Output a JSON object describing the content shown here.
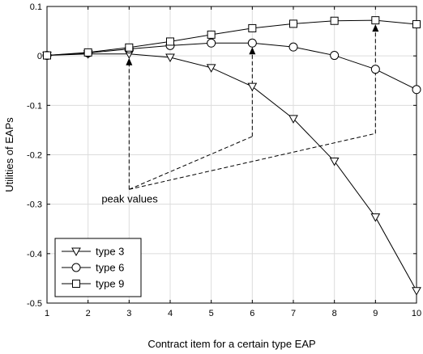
{
  "chart_data": {
    "type": "line",
    "xlabel": "Contract item for a certain type EAP",
    "ylabel": "Utilities of EAPs",
    "xlim": [
      1,
      10
    ],
    "ylim": [
      -0.5,
      0.1
    ],
    "xticks": [
      1,
      2,
      3,
      4,
      5,
      6,
      7,
      8,
      9,
      10
    ],
    "yticks": [
      0.1,
      0,
      -0.1,
      -0.2,
      -0.3,
      -0.4,
      -0.5
    ],
    "ytick_labels": [
      "0.1",
      "0",
      "-0.1",
      "-0.2",
      "-0.3",
      "-0.4",
      "-0.5"
    ],
    "grid": true,
    "legend_position": "bottom-left",
    "series": [
      {
        "name": "type 3",
        "marker": "triangle-down",
        "x": [
          1,
          2,
          3,
          4,
          5,
          6,
          7,
          8,
          9,
          10
        ],
        "values": [
          0.001,
          0.004,
          0.004,
          -0.003,
          -0.024,
          -0.062,
          -0.127,
          -0.213,
          -0.326,
          -0.475
        ]
      },
      {
        "name": "type 6",
        "marker": "circle",
        "x": [
          1,
          2,
          3,
          4,
          5,
          6,
          7,
          8,
          9,
          10
        ],
        "values": [
          0.001,
          0.006,
          0.014,
          0.021,
          0.026,
          0.026,
          0.018,
          0.001,
          -0.027,
          -0.068
        ]
      },
      {
        "name": "type 9",
        "marker": "square",
        "x": [
          1,
          2,
          3,
          4,
          5,
          6,
          7,
          8,
          9,
          10
        ],
        "values": [
          0.001,
          0.007,
          0.017,
          0.029,
          0.043,
          0.056,
          0.065,
          0.071,
          0.072,
          0.064
        ]
      }
    ],
    "annotations": [
      {
        "text": "peak values",
        "label_point": [
          3,
          -0.27
        ],
        "arrows": [
          {
            "x": 3,
            "y_from": -0.27,
            "y_to": 0.004
          },
          {
            "x": 6,
            "y_from": -0.163,
            "y_to": 0.026
          },
          {
            "x": 9,
            "y_from": -0.157,
            "y_to": 0.072
          }
        ]
      }
    ]
  }
}
